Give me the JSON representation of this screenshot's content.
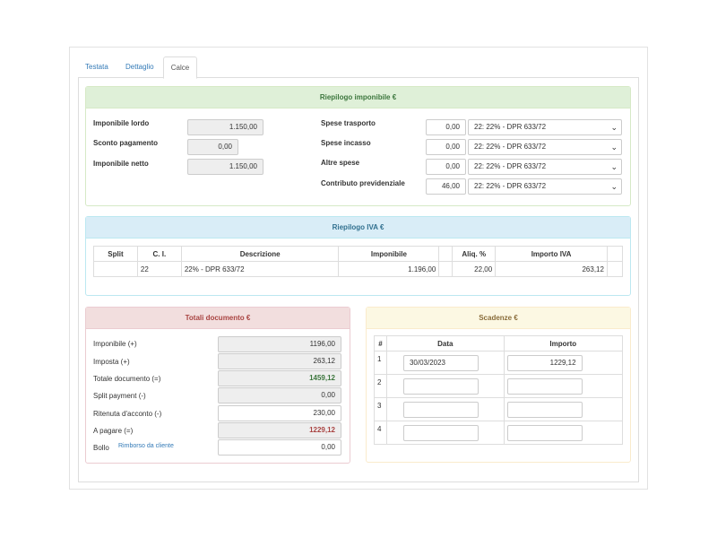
{
  "tabs": [
    {
      "label": "Testata",
      "active": false
    },
    {
      "label": "Dettaglio",
      "active": false
    },
    {
      "label": "Calce",
      "active": true
    }
  ],
  "riepilogo_imponibile": {
    "title": "Riepilogo imponibile €",
    "imponibile_lordo": {
      "label": "Imponibile lordo",
      "value": "1.150,00"
    },
    "sconto_pagamento": {
      "label": "Sconto pagamento",
      "value": "0,00"
    },
    "imponibile_netto": {
      "label": "Imponibile netto",
      "value": "1.150,00"
    },
    "spese_trasporto": {
      "label": "Spese trasporto",
      "value": "0,00",
      "iva": "22: 22% - DPR 633/72"
    },
    "spese_incasso": {
      "label": "Spese incasso",
      "value": "0,00",
      "iva": "22: 22% - DPR 633/72"
    },
    "altre_spese": {
      "label": "Altre spese",
      "value": "0,00",
      "iva": "22: 22% - DPR 633/72"
    },
    "contributo_previdenziale": {
      "label": "Contributo previdenziale",
      "value": "46,00",
      "iva": "22: 22% - DPR 633/72"
    }
  },
  "riepilogo_iva": {
    "title": "Riepilogo IVA €",
    "headers": [
      "Split",
      "C. I.",
      "Descrizione",
      "Imponibile",
      "",
      "Aliq. %",
      "Importo IVA",
      ""
    ],
    "rows": [
      [
        "",
        "22",
        "22% - DPR 633/72",
        "1.196,00",
        "",
        "22,00",
        "263,12",
        ""
      ]
    ]
  },
  "totali": {
    "title": "Totali documento €",
    "imponibile": {
      "label": "Imponibile (+)",
      "value": "1196,00"
    },
    "imposta": {
      "label": "Imposta (+)",
      "value": "263,12"
    },
    "totale_documento": {
      "label": "Totale documento (=)",
      "value": "1459,12"
    },
    "split_payment": {
      "label": "Split payment (-)",
      "value": "0,00"
    },
    "ritenuta": {
      "label": "Ritenuta d'acconto (-)",
      "value": "230,00"
    },
    "a_pagare": {
      "label": "A pagare (=)",
      "value": "1229,12"
    },
    "bollo": {
      "label": "Bollo",
      "link": "Rimborso da cliente",
      "value": "0,00"
    }
  },
  "scadenze": {
    "title": "Scadenze €",
    "headers": [
      "#",
      "Data",
      "Importo"
    ],
    "rows": [
      {
        "n": "1",
        "data": "30/03/2023",
        "importo": "1229,12"
      },
      {
        "n": "2",
        "data": "",
        "importo": ""
      },
      {
        "n": "3",
        "data": "",
        "importo": ""
      },
      {
        "n": "4",
        "data": "",
        "importo": ""
      }
    ]
  },
  "colors": {
    "green_heading": "#dff0d8",
    "blue_heading": "#d9edf7",
    "red_heading": "#f2dede",
    "yellow_heading": "#fcf8e3",
    "link": "#337ab7"
  }
}
